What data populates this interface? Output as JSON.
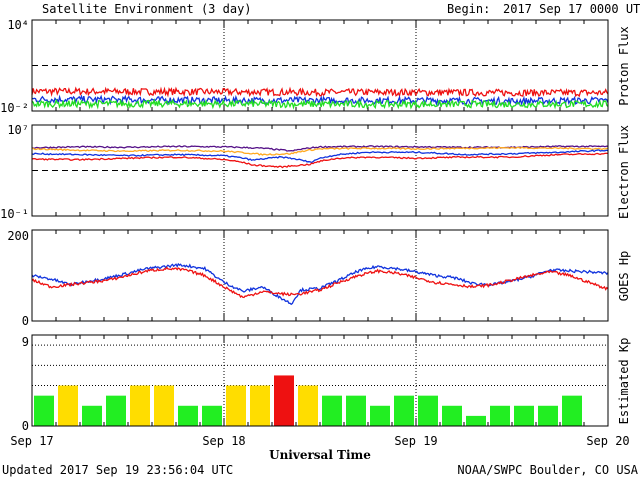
{
  "header": {
    "title": "Satellite Environment (3 day)",
    "begin_label": "Begin:",
    "begin_value": "2017 Sep 17 0000 UTC"
  },
  "footer": {
    "updated": "Updated 2017 Sep 19 23:56:04 UTC",
    "credit": "NOAA/SWPC Boulder, CO USA"
  },
  "xaxis": {
    "title": "Universal Time",
    "ticks": [
      "Sep 17",
      "Sep 18",
      "Sep 19",
      "Sep 20"
    ],
    "range_days": [
      0,
      3
    ]
  },
  "colors": {
    "red": "#ee1111",
    "blue": "#1133dd",
    "green": "#22dd22",
    "orange": "#ffaa22",
    "purple": "#551188",
    "kp_green": "#22ee22",
    "kp_yellow": "#ffdd00",
    "kp_red": "#ee1111"
  },
  "chart_data": [
    {
      "type": "line",
      "ylabel": "Proton Flux",
      "yscale": "log",
      "ylim": [
        0.01,
        10000
      ],
      "ytick_labels": {
        "top": "10⁴",
        "bottom": "10⁻²"
      },
      "threshold": 10,
      "x_unit": "days since Sep 17 00 UTC",
      "series": [
        {
          "color": "red",
          "x": [
            0,
            0.5,
            1,
            1.5,
            2,
            2.5,
            3
          ],
          "y": [
            0.2,
            0.19,
            0.18,
            0.17,
            0.17,
            0.16,
            0.16
          ]
        },
        {
          "color": "blue",
          "x": [
            0,
            0.5,
            1,
            1.5,
            2,
            2.5,
            3
          ],
          "y": [
            0.06,
            0.055,
            0.05,
            0.05,
            0.05,
            0.045,
            0.05
          ]
        },
        {
          "color": "green",
          "x": [
            0,
            0.5,
            1,
            1.5,
            2,
            2.5,
            3
          ],
          "y": [
            0.03,
            0.03,
            0.03,
            0.028,
            0.028,
            0.028,
            0.028
          ]
        }
      ]
    },
    {
      "type": "line",
      "ylabel": "Electron Flux",
      "yscale": "log",
      "ylim": [
        0.1,
        10000000
      ],
      "ytick_labels": {
        "top": "10⁷",
        "bottom": "10⁻¹"
      },
      "threshold": 1000,
      "series": [
        {
          "color": "purple",
          "x": [
            0,
            0.25,
            0.5,
            0.75,
            1.0,
            1.2,
            1.35,
            1.5,
            1.75,
            2.0,
            2.25,
            2.5,
            2.75,
            3.0
          ],
          "y": [
            100000,
            120000,
            110000,
            130000,
            120000,
            90000,
            50000,
            120000,
            130000,
            120000,
            110000,
            110000,
            130000,
            130000
          ]
        },
        {
          "color": "orange",
          "x": [
            0,
            0.25,
            0.5,
            0.75,
            1.0,
            1.2,
            1.35,
            1.5,
            1.75,
            2.0,
            2.25,
            2.5,
            2.75,
            3.0
          ],
          "y": [
            80000,
            60000,
            50000,
            60000,
            50000,
            25000,
            30000,
            80000,
            90000,
            80000,
            90000,
            100000,
            90000,
            80000
          ]
        },
        {
          "color": "blue",
          "x": [
            0,
            0.25,
            0.5,
            0.75,
            1.0,
            1.15,
            1.3,
            1.45,
            1.6,
            1.75,
            2.0,
            2.25,
            2.5,
            2.75,
            3.0
          ],
          "y": [
            30000,
            25000,
            20000,
            25000,
            20000,
            8000,
            15000,
            5000,
            25000,
            40000,
            40000,
            25000,
            30000,
            40000,
            60000
          ]
        },
        {
          "color": "red",
          "x": [
            0,
            0.25,
            0.5,
            0.75,
            1.0,
            1.15,
            1.3,
            1.45,
            1.6,
            1.75,
            2.0,
            2.25,
            2.5,
            2.75,
            3.0
          ],
          "y": [
            10000,
            9000,
            12000,
            15000,
            9000,
            3000,
            2000,
            3500,
            12000,
            15000,
            12000,
            15000,
            15000,
            25000,
            30000
          ]
        }
      ]
    },
    {
      "type": "line",
      "ylabel": "GOES Hp",
      "ylim": [
        0,
        200
      ],
      "ytick_labels": {
        "top": "200",
        "bottom": "0"
      },
      "series": [
        {
          "color": "blue",
          "x": [
            0,
            0.1,
            0.2,
            0.3,
            0.4,
            0.5,
            0.6,
            0.7,
            0.75,
            0.8,
            0.9,
            1.0,
            1.1,
            1.2,
            1.25,
            1.3,
            1.35,
            1.4,
            1.5,
            1.6,
            1.7,
            1.8,
            1.9,
            2.0,
            2.1,
            2.2,
            2.3,
            2.4,
            2.5,
            2.6,
            2.7,
            2.8,
            2.9,
            3.0
          ],
          "y": [
            100,
            92,
            80,
            88,
            95,
            105,
            115,
            120,
            123,
            122,
            115,
            85,
            65,
            75,
            62,
            50,
            38,
            68,
            72,
            90,
            110,
            120,
            115,
            108,
            100,
            95,
            82,
            80,
            88,
            98,
            112,
            110,
            108,
            105
          ]
        },
        {
          "color": "red",
          "x": [
            0,
            0.1,
            0.2,
            0.3,
            0.4,
            0.5,
            0.6,
            0.7,
            0.75,
            0.8,
            0.9,
            1.0,
            1.1,
            1.2,
            1.25,
            1.3,
            1.35,
            1.4,
            1.5,
            1.6,
            1.7,
            1.8,
            1.9,
            2.0,
            2.1,
            2.2,
            2.3,
            2.4,
            2.5,
            2.6,
            2.7,
            2.8,
            2.9,
            3.0
          ],
          "y": [
            90,
            75,
            80,
            85,
            90,
            100,
            110,
            115,
            114,
            112,
            100,
            75,
            52,
            65,
            62,
            60,
            58,
            60,
            68,
            85,
            100,
            110,
            105,
            95,
            85,
            80,
            75,
            80,
            90,
            100,
            108,
            100,
            85,
            70
          ]
        }
      ]
    },
    {
      "type": "bar",
      "ylabel": "Estimated Kp",
      "ylim": [
        0,
        9
      ],
      "ytick_labels": {
        "top": "9",
        "bottom": "0"
      },
      "dotted_levels": [
        4,
        6,
        8
      ],
      "bin_hours": 3,
      "values": [
        3,
        4,
        2,
        3,
        4,
        4,
        2,
        2,
        4,
        4,
        5,
        4,
        3,
        3,
        2,
        3,
        3,
        2,
        1,
        2,
        2,
        2,
        3,
        0
      ],
      "colors": [
        "kp_green",
        "kp_yellow",
        "kp_green",
        "kp_green",
        "kp_yellow",
        "kp_yellow",
        "kp_green",
        "kp_green",
        "kp_yellow",
        "kp_yellow",
        "kp_red",
        "kp_yellow",
        "kp_green",
        "kp_green",
        "kp_green",
        "kp_green",
        "kp_green",
        "kp_green",
        "kp_green",
        "kp_green",
        "kp_green",
        "kp_green",
        "kp_green",
        "kp_green"
      ]
    }
  ]
}
